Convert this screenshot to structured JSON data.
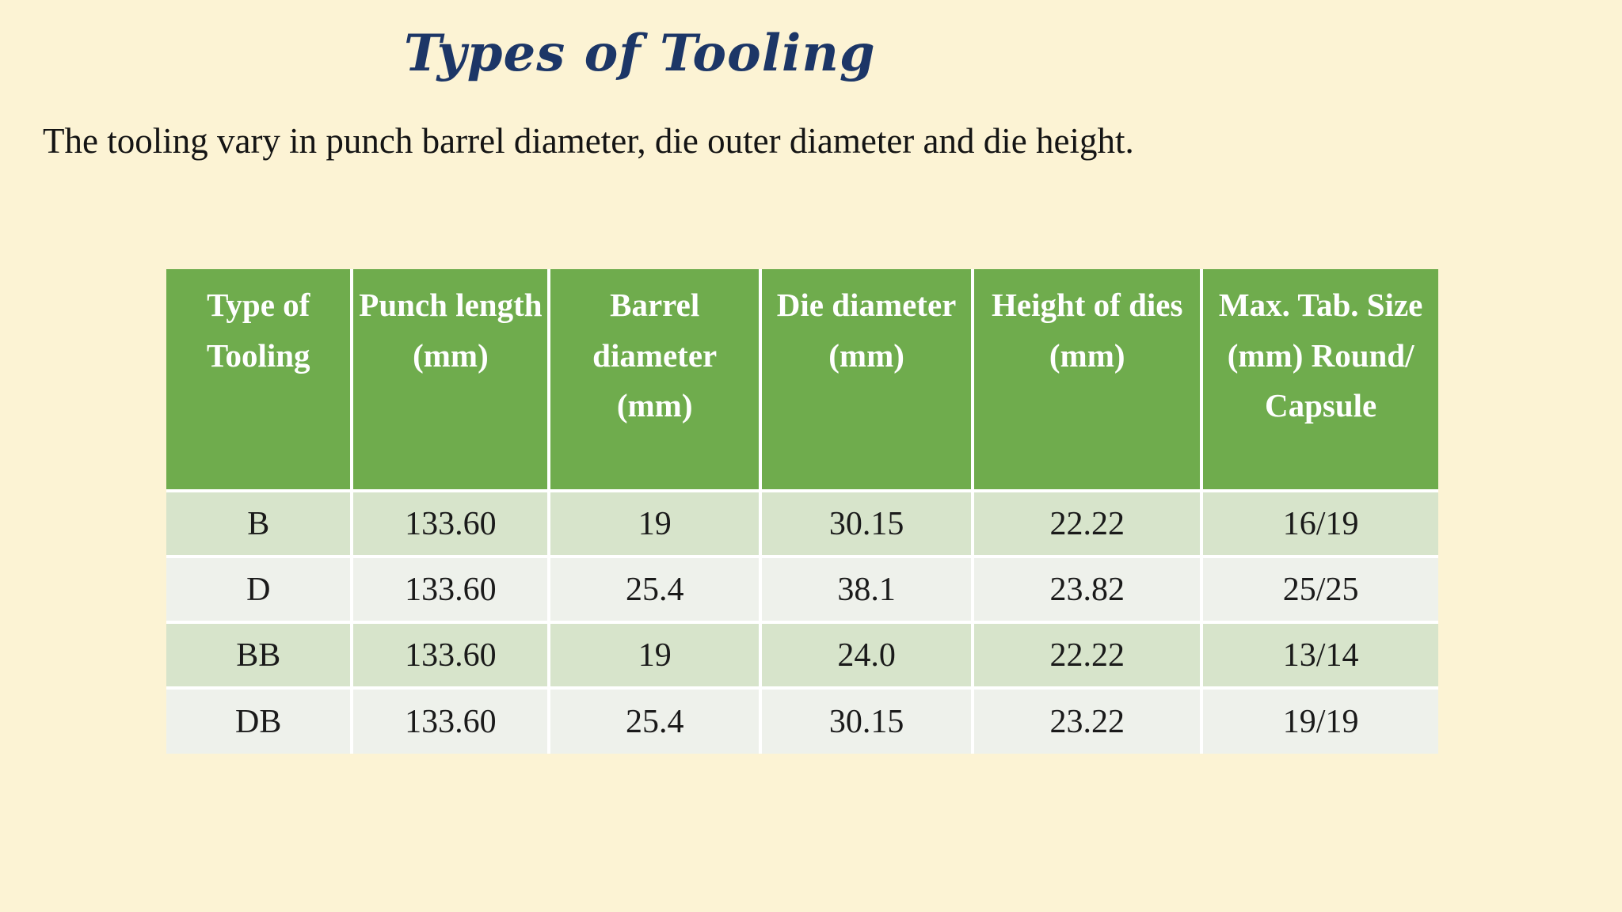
{
  "slide": {
    "title": "Types of Tooling",
    "subtitle": "The tooling vary in punch barrel diameter, die outer diameter and die height."
  },
  "table": {
    "headers": [
      "Type of Tooling",
      "Punch length (mm)",
      "Barrel diameter (mm)",
      "Die diameter (mm)",
      "Height of dies (mm)",
      "Max. Tab. Size (mm) Round/ Capsule"
    ],
    "rows": [
      [
        "B",
        "133.60",
        "19",
        "30.15",
        "22.22",
        "16/19"
      ],
      [
        "D",
        "133.60",
        "25.4",
        "38.1",
        "23.82",
        "25/25"
      ],
      [
        "BB",
        "133.60",
        "19",
        "24.0",
        "22.22",
        "13/14"
      ],
      [
        "DB",
        "133.60",
        "25.4",
        "30.15",
        "23.22",
        "19/19"
      ]
    ]
  },
  "colors": {
    "background_cream": "#FCF3D4",
    "header_green": "#6FAC4D",
    "row_light_green": "#D7E4CB",
    "row_light_gray": "#EEF1EB",
    "grid_white": "#FFFFFF",
    "title_navy": "#1C3667",
    "body_text": "#141414"
  }
}
